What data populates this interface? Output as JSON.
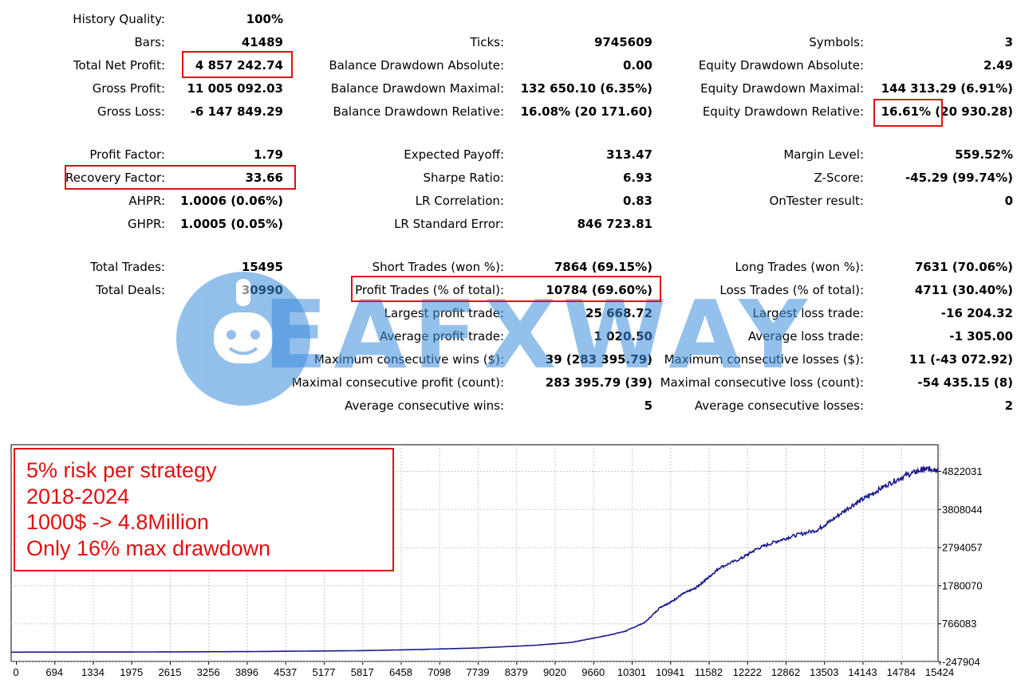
{
  "stats": {
    "col1": [
      {
        "label": "History Quality:",
        "value": "100%"
      },
      {
        "label": "Bars:",
        "value": "41489"
      },
      {
        "label": "Total Net Profit:",
        "value": "4 857 242.74"
      },
      {
        "label": "Gross Profit:",
        "value": "11 005 092.03"
      },
      {
        "label": "Gross Loss:",
        "value": "-6 147 849.29"
      },
      {
        "label": "Profit Factor:",
        "value": "1.79"
      },
      {
        "label": "Recovery Factor:",
        "value": "33.66"
      },
      {
        "label": "AHPR:",
        "value": "1.0006 (0.06%)"
      },
      {
        "label": "GHPR:",
        "value": "1.0005 (0.05%)"
      },
      {
        "label": "Total Trades:",
        "value": "15495"
      },
      {
        "label": "Total Deals:",
        "value": "30990"
      }
    ],
    "col2": [
      {
        "label": "Ticks:",
        "value": "9745609"
      },
      {
        "label": "Balance Drawdown Absolute:",
        "value": "0.00"
      },
      {
        "label": "Balance Drawdown Maximal:",
        "value": "132 650.10 (6.35%)"
      },
      {
        "label": "Balance Drawdown Relative:",
        "value": "16.08% (20 171.60)"
      },
      {
        "label": "Expected Payoff:",
        "value": "313.47"
      },
      {
        "label": "Sharpe Ratio:",
        "value": "6.93"
      },
      {
        "label": "LR Correlation:",
        "value": "0.83"
      },
      {
        "label": "LR Standard Error:",
        "value": "846 723.81"
      },
      {
        "label": "Short Trades (won %):",
        "value": "7864 (69.15%)"
      },
      {
        "label": "Profit Trades (% of total):",
        "value": "10784 (69.60%)"
      },
      {
        "label": "Largest profit trade:",
        "value": "25 668.72"
      },
      {
        "label": "Average profit trade:",
        "value": "1 020.50"
      },
      {
        "label": "Maximum consecutive wins ($):",
        "value": "39 (283 395.79)"
      },
      {
        "label": "Maximal consecutive profit (count):",
        "value": "283 395.79 (39)"
      },
      {
        "label": "Average consecutive wins:",
        "value": "5"
      }
    ],
    "col3": [
      {
        "label": "Symbols:",
        "value": "3"
      },
      {
        "label": "Equity Drawdown Absolute:",
        "value": "2.49"
      },
      {
        "label": "Equity Drawdown Maximal:",
        "value": "144 313.29 (6.91%)"
      },
      {
        "label": "Equity Drawdown Relative:",
        "value": "16.61% (20 930.28)"
      },
      {
        "label": "Margin Level:",
        "value": "559.52%"
      },
      {
        "label": "Z-Score:",
        "value": "-45.29 (99.74%)"
      },
      {
        "label": "OnTester result:",
        "value": "0"
      },
      {
        "label": "Long Trades (won %):",
        "value": "7631 (70.06%)"
      },
      {
        "label": "Loss Trades (% of total):",
        "value": "4711 (30.40%)"
      },
      {
        "label": "Largest loss trade:",
        "value": "-16 204.32"
      },
      {
        "label": "Average loss trade:",
        "value": "-1 305.00"
      },
      {
        "label": "Maximum consecutive losses ($):",
        "value": "11 (-43 072.92)"
      },
      {
        "label": "Maximal consecutive loss (count):",
        "value": "-54 435.15 (8)"
      },
      {
        "label": "Average consecutive losses:",
        "value": "2"
      }
    ]
  },
  "watermark": {
    "text": "EAFXWAY",
    "color": "#3c8cdc"
  },
  "note": {
    "lines": [
      "5% risk per strategy",
      "2018-2024",
      "1000$ -> 4.8Million",
      "Only 16% max drawdown"
    ],
    "color": "#e01010"
  },
  "colors": {
    "line": "#1a1a8c",
    "grid": "#c8c8c8",
    "highlight": "#e01010"
  },
  "chart_data": {
    "type": "line",
    "y_ticks": [
      "4822031",
      "3808044",
      "2794057",
      "1780070",
      "766083",
      "-247904"
    ],
    "x_ticks": [
      "0",
      "694",
      "1334",
      "1975",
      "2615",
      "3256",
      "3896",
      "4537",
      "5177",
      "5817",
      "6458",
      "7098",
      "7739",
      "8379",
      "9020",
      "9660",
      "10301",
      "10941",
      "11582",
      "12222",
      "12862",
      "13503",
      "14143",
      "14784",
      "15424"
    ],
    "ylim": [
      -247904,
      5000000
    ],
    "xlim": [
      0,
      15990
    ],
    "series": [
      {
        "points": [
          [
            0,
            1000
          ],
          [
            2000,
            5000
          ],
          [
            4000,
            15000
          ],
          [
            6000,
            40000
          ],
          [
            7000,
            70000
          ],
          [
            8000,
            110000
          ],
          [
            9000,
            180000
          ],
          [
            9660,
            260000
          ],
          [
            10301,
            450000
          ],
          [
            10600,
            560000
          ],
          [
            10941,
            800000
          ],
          [
            11200,
            1200000
          ],
          [
            11400,
            1350000
          ],
          [
            11582,
            1550000
          ],
          [
            11800,
            1700000
          ],
          [
            12000,
            1950000
          ],
          [
            12222,
            2250000
          ],
          [
            12600,
            2500000
          ],
          [
            12862,
            2750000
          ],
          [
            13200,
            2950000
          ],
          [
            13503,
            3100000
          ],
          [
            13900,
            3250000
          ],
          [
            14143,
            3500000
          ],
          [
            14500,
            3900000
          ],
          [
            14784,
            4150000
          ],
          [
            15100,
            4450000
          ],
          [
            15424,
            4700000
          ],
          [
            15700,
            4850000
          ],
          [
            15850,
            4880000
          ],
          [
            15990,
            4857242
          ]
        ]
      }
    ]
  }
}
